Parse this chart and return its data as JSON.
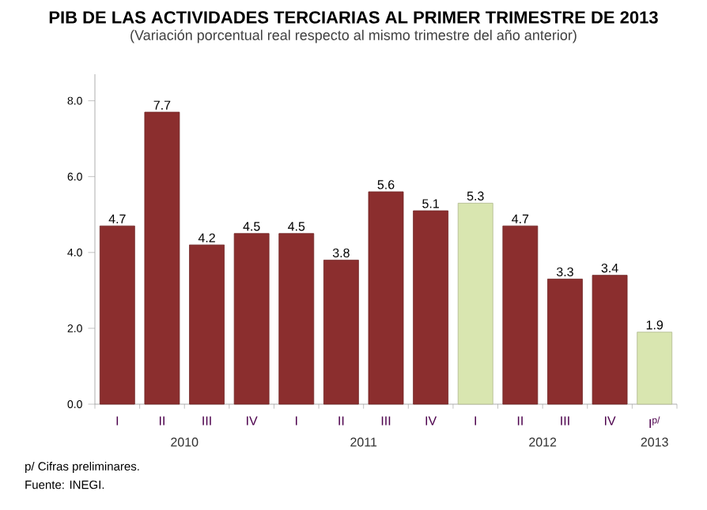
{
  "chart_data": {
    "type": "bar",
    "title": "PIB DE LAS ACTIVIDADES TERCIARIAS AL PRIMER TRIMESTRE DE 2013",
    "subtitle": "(Variación porcentual real respecto al mismo trimestre del año anterior)",
    "categories": [
      "I",
      "II",
      "III",
      "IV",
      "I",
      "II",
      "III",
      "IV",
      "I",
      "II",
      "III",
      "IV",
      "I$^{p/}$"
    ],
    "values": [
      4.7,
      7.7,
      4.2,
      4.5,
      4.5,
      3.8,
      5.6,
      5.1,
      5.3,
      4.7,
      3.3,
      3.4,
      1.9
    ],
    "colors": [
      "#8b2e2e",
      "#8b2e2e",
      "#8b2e2e",
      "#8b2e2e",
      "#8b2e2e",
      "#8b2e2e",
      "#8b2e2e",
      "#8b2e2e",
      "#d9e6b0",
      "#8b2e2e",
      "#8b2e2e",
      "#8b2e2e",
      "#d9e6b0"
    ],
    "ylim": [
      0,
      8.7
    ],
    "yticks": [
      {
        "value": 0,
        "label": "0.0"
      },
      {
        "value": 2,
        "label": "2.0"
      },
      {
        "value": 4,
        "label": "4.0"
      },
      {
        "value": 6,
        "label": "6.0"
      },
      {
        "value": 8,
        "label": "8.0"
      }
    ],
    "data_labels": true,
    "grid": false,
    "annotations": [
      "2010",
      "2011",
      "2012",
      "2013",
      "p/ Cifras preliminares.",
      "Fuente: INEGI."
    ]
  }
}
